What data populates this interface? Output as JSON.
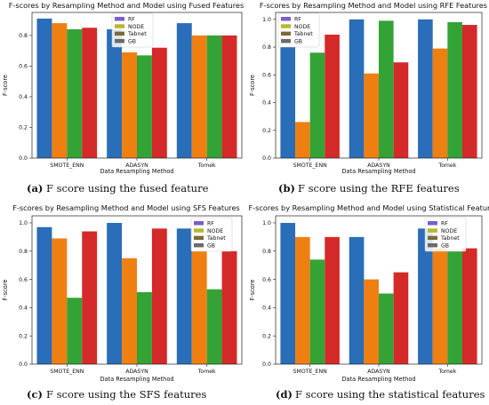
{
  "chart_data": [
    {
      "type": "bar",
      "title": "F-scores by Resampling Method and Model using Fused Features",
      "xlabel": "Data Resampling Method",
      "ylabel": "F-score",
      "categories": [
        "SMOTE_ENN",
        "ADASYN",
        "Tomek"
      ],
      "ylim": [
        0,
        0.95
      ],
      "yticks": [
        0.0,
        0.2,
        0.4,
        0.6,
        0.8
      ],
      "ytick_labels": [
        "0.0",
        "0.2",
        "0.4",
        "0.6",
        "0.8"
      ],
      "legend_position": "top-center",
      "series": [
        {
          "name": "RF",
          "values": [
            0.91,
            0.84,
            0.88
          ]
        },
        {
          "name": "NODE",
          "values": [
            0.88,
            0.69,
            0.8
          ]
        },
        {
          "name": "Tabnet",
          "values": [
            0.84,
            0.67,
            0.8
          ]
        },
        {
          "name": "GB",
          "values": [
            0.85,
            0.72,
            0.8
          ]
        }
      ],
      "caption_letter": "(a)",
      "caption": "F score using the fused feature"
    },
    {
      "type": "bar",
      "title": "F-scores by Resampling Method and Model using RFE Features",
      "xlabel": "Data Resampling Method",
      "ylabel": "F-score",
      "categories": [
        "SMOTE_ENN",
        "ADASYN",
        "Tomek"
      ],
      "ylim": [
        0,
        1.05
      ],
      "yticks": [
        0.0,
        0.2,
        0.4,
        0.6,
        0.8,
        1.0
      ],
      "ytick_labels": [
        "0.0",
        "0.2",
        "0.4",
        "0.6",
        "0.8",
        "1.0"
      ],
      "legend_position": "top-left",
      "series": [
        {
          "name": "RF",
          "values": [
            0.8,
            1.0,
            1.0
          ]
        },
        {
          "name": "NODE",
          "values": [
            0.26,
            0.61,
            0.79
          ]
        },
        {
          "name": "Tabnet",
          "values": [
            0.76,
            0.99,
            0.98
          ]
        },
        {
          "name": "GB",
          "values": [
            0.89,
            0.69,
            0.96
          ]
        }
      ],
      "caption_letter": "(b)",
      "caption": "F score using the RFE features"
    },
    {
      "type": "bar",
      "title": "F-scores by Resampling Method and Model using SFS Features",
      "xlabel": "Data Resampling Method",
      "ylabel": "F-score",
      "categories": [
        "SMOTE_ENN",
        "ADASYN",
        "Tomek"
      ],
      "ylim": [
        0,
        1.05
      ],
      "yticks": [
        0.0,
        0.2,
        0.4,
        0.6,
        0.8,
        1.0
      ],
      "ytick_labels": [
        "0.0",
        "0.2",
        "0.4",
        "0.6",
        "0.8",
        "1.0"
      ],
      "legend_position": "top-right",
      "series": [
        {
          "name": "RF",
          "values": [
            0.97,
            1.0,
            0.96
          ]
        },
        {
          "name": "NODE",
          "values": [
            0.89,
            0.75,
            0.8
          ]
        },
        {
          "name": "Tabnet",
          "values": [
            0.47,
            0.51,
            0.53
          ]
        },
        {
          "name": "GB",
          "values": [
            0.94,
            0.96,
            0.8
          ]
        }
      ],
      "caption_letter": "(c)",
      "caption": "F score using the SFS features"
    },
    {
      "type": "bar",
      "title": "F-scores by Resampling Method and Model using Statistical Features",
      "xlabel": "Data Resampling Method",
      "ylabel": "F-score",
      "categories": [
        "SMOTE_ENN",
        "ADASYN",
        "Tomek"
      ],
      "ylim": [
        0,
        1.05
      ],
      "yticks": [
        0.0,
        0.2,
        0.4,
        0.6,
        0.8,
        1.0
      ],
      "ytick_labels": [
        "0.0",
        "0.2",
        "0.4",
        "0.6",
        "0.8",
        "1.0"
      ],
      "legend_position": "top-right",
      "series": [
        {
          "name": "RF",
          "values": [
            1.0,
            0.9,
            0.96
          ]
        },
        {
          "name": "NODE",
          "values": [
            0.9,
            0.6,
            0.82
          ]
        },
        {
          "name": "Tabnet",
          "values": [
            0.74,
            0.5,
            0.8
          ]
        },
        {
          "name": "GB",
          "values": [
            0.9,
            0.65,
            0.82
          ]
        }
      ],
      "caption_letter": "(d)",
      "caption": "F score using the statistical features"
    }
  ],
  "colors": {
    "series": [
      "#2a6db8",
      "#f07f12",
      "#34a335",
      "#d42a2a"
    ],
    "legend_swatches": [
      "#7b5ec9",
      "#b7b82c",
      "#7a6a3a",
      "#6b6b6b"
    ],
    "axis": "#222222"
  }
}
